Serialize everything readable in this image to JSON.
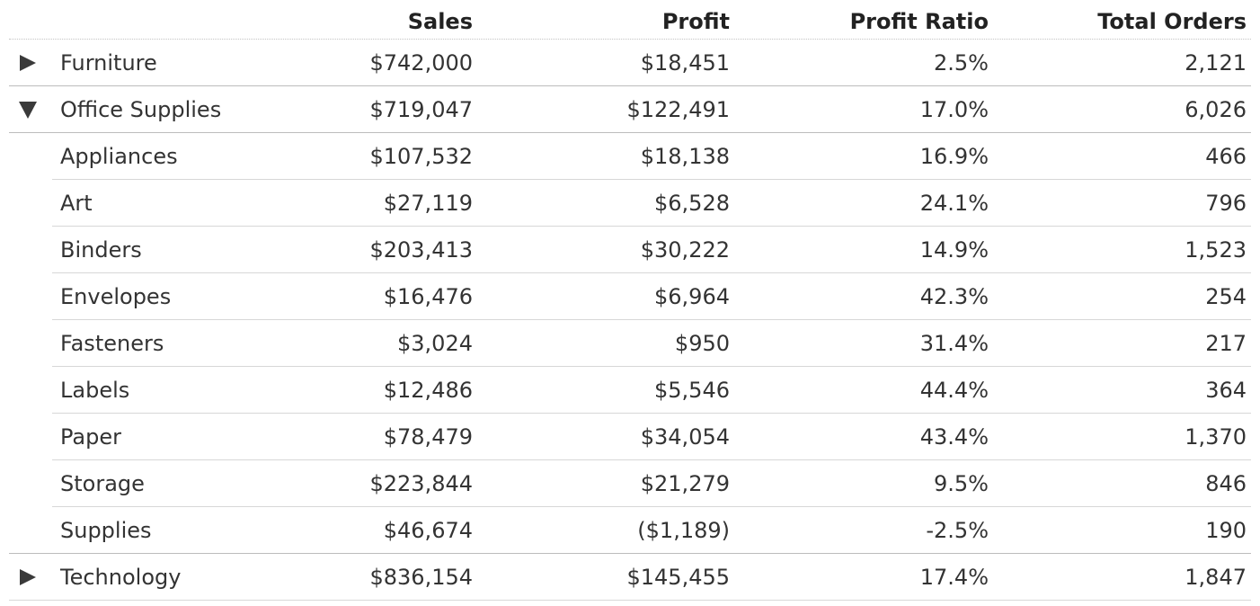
{
  "columns": {
    "sales": "Sales",
    "profit": "Profit",
    "profit_ratio": "Profit Ratio",
    "total_orders": "Total Orders"
  },
  "rows": [
    {
      "level": "category",
      "expanded": false,
      "toggle_icon": "expand-triangle-icon",
      "name": "Furniture",
      "sales": "$742,000",
      "profit": "$18,451",
      "profit_ratio": "2.5%",
      "total_orders": "2,121"
    },
    {
      "level": "category",
      "expanded": true,
      "toggle_icon": "collapse-triangle-icon",
      "name": "Office Supplies",
      "sales": "$719,047",
      "profit": "$122,491",
      "profit_ratio": "17.0%",
      "total_orders": "6,026"
    },
    {
      "level": "subcategory",
      "name": "Appliances",
      "sales": "$107,532",
      "profit": "$18,138",
      "profit_ratio": "16.9%",
      "total_orders": "466"
    },
    {
      "level": "subcategory",
      "name": "Art",
      "sales": "$27,119",
      "profit": "$6,528",
      "profit_ratio": "24.1%",
      "total_orders": "796"
    },
    {
      "level": "subcategory",
      "name": "Binders",
      "sales": "$203,413",
      "profit": "$30,222",
      "profit_ratio": "14.9%",
      "total_orders": "1,523"
    },
    {
      "level": "subcategory",
      "name": "Envelopes",
      "sales": "$16,476",
      "profit": "$6,964",
      "profit_ratio": "42.3%",
      "total_orders": "254"
    },
    {
      "level": "subcategory",
      "name": "Fasteners",
      "sales": "$3,024",
      "profit": "$950",
      "profit_ratio": "31.4%",
      "total_orders": "217"
    },
    {
      "level": "subcategory",
      "name": "Labels",
      "sales": "$12,486",
      "profit": "$5,546",
      "profit_ratio": "44.4%",
      "total_orders": "364"
    },
    {
      "level": "subcategory",
      "name": "Paper",
      "sales": "$78,479",
      "profit": "$34,054",
      "profit_ratio": "43.4%",
      "total_orders": "1,370"
    },
    {
      "level": "subcategory",
      "name": "Storage",
      "sales": "$223,844",
      "profit": "$21,279",
      "profit_ratio": "9.5%",
      "total_orders": "846"
    },
    {
      "level": "subcategory",
      "name": "Supplies",
      "sales": "$46,674",
      "profit": "($1,189)",
      "profit_ratio": "-2.5%",
      "total_orders": "190"
    },
    {
      "level": "category",
      "expanded": false,
      "toggle_icon": "expand-triangle-icon",
      "name": "Technology",
      "sales": "$836,154",
      "profit": "$145,455",
      "profit_ratio": "17.4%",
      "total_orders": "1,847"
    }
  ]
}
